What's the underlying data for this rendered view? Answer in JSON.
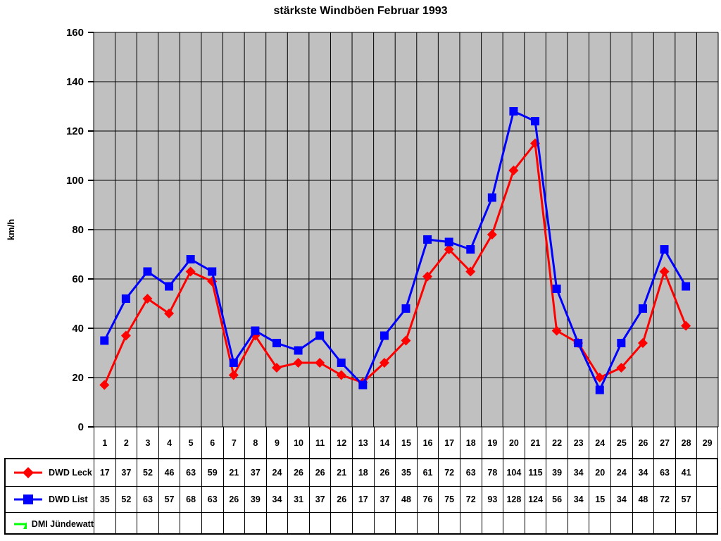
{
  "chart_data": {
    "type": "line",
    "title": "stärkste Windböen Februar 1993",
    "xlabel": "",
    "ylabel": "km/h",
    "ylim": [
      0,
      160
    ],
    "ytick_step": 20,
    "grid": true,
    "legend_position": "bottom-left-table",
    "plot_bg": "#c0c0c0",
    "grid_color": "#000000",
    "categories": [
      "1",
      "2",
      "3",
      "4",
      "5",
      "6",
      "7",
      "8",
      "9",
      "10",
      "11",
      "12",
      "13",
      "14",
      "15",
      "16",
      "17",
      "18",
      "19",
      "20",
      "21",
      "22",
      "23",
      "24",
      "25",
      "26",
      "27",
      "28",
      "29"
    ],
    "series": [
      {
        "name": "DWD Leck",
        "color": "#ff0000",
        "marker": "diamond",
        "values": [
          17,
          37,
          52,
          46,
          63,
          59,
          21,
          37,
          24,
          26,
          26,
          21,
          18,
          26,
          35,
          61,
          72,
          63,
          78,
          104,
          115,
          39,
          34,
          20,
          24,
          34,
          63,
          41,
          null
        ]
      },
      {
        "name": "DWD List",
        "color": "#0000ff",
        "marker": "square",
        "values": [
          35,
          52,
          63,
          57,
          68,
          63,
          26,
          39,
          34,
          31,
          37,
          26,
          17,
          37,
          48,
          76,
          75,
          72,
          93,
          128,
          124,
          56,
          34,
          15,
          34,
          48,
          72,
          57,
          null
        ]
      },
      {
        "name": "DMI Jündewatt",
        "color": "#00ff00",
        "marker": "triangle",
        "values": [
          null,
          null,
          null,
          null,
          null,
          null,
          null,
          null,
          null,
          null,
          null,
          null,
          null,
          null,
          null,
          null,
          null,
          null,
          null,
          null,
          null,
          null,
          null,
          null,
          null,
          null,
          null,
          null,
          null
        ]
      }
    ]
  }
}
